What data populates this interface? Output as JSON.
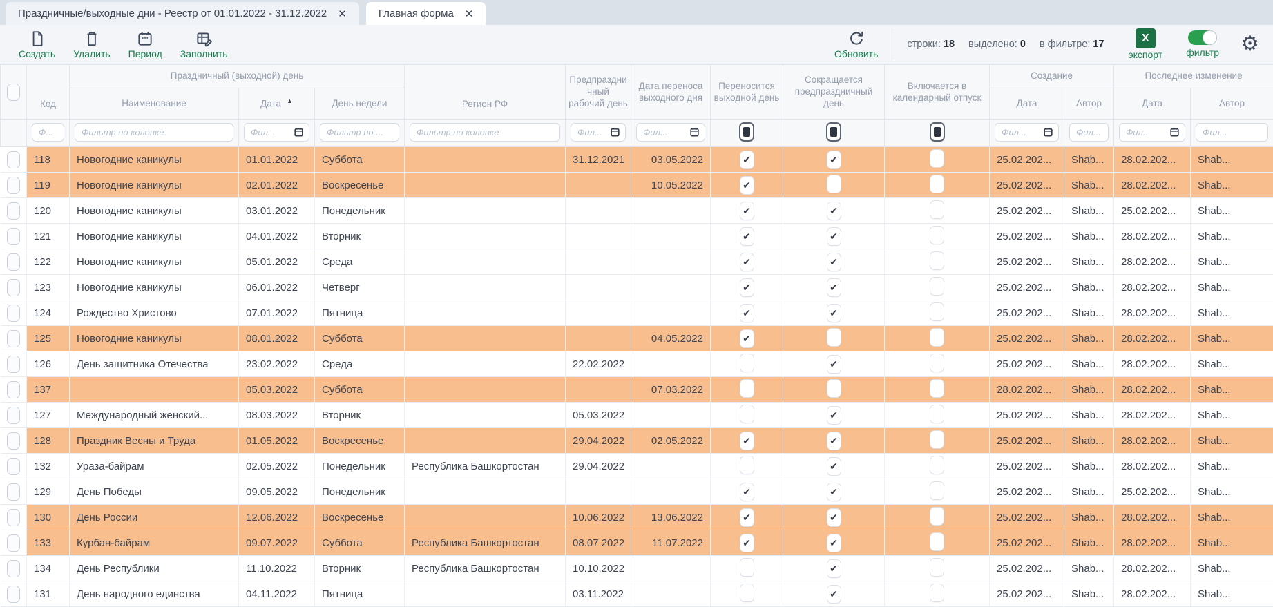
{
  "tabs": [
    {
      "label": "Праздничные/выходные дни - Реестр от 01.01.2022 - 31.12.2022"
    },
    {
      "label": "Главная форма"
    }
  ],
  "icons": {
    "close": "✕",
    "check": "✔",
    "sort_asc": "▲",
    "gear": "⚙",
    "export_letter": "X"
  },
  "colors": {
    "accent_green": "#17824e",
    "row_highlight": "#f9be8e",
    "excel_green": "#1e7145",
    "toggle_on": "#2aa04f"
  },
  "toolbar": {
    "create": "Создать",
    "delete": "Удалить",
    "period": "Период",
    "fill": "Заполнить",
    "refresh": "Обновить",
    "status": {
      "rows_label": "строки:",
      "rows": "18",
      "selected_label": "выделено:",
      "selected": "0",
      "filtered_label": "в фильтре:",
      "filtered": "17"
    },
    "export": "экспорт",
    "filter": "фильтр"
  },
  "table": {
    "groups": {
      "holiday": "Праздничный (выходной) день",
      "creation": "Создание",
      "last_change": "Последнее изменение"
    },
    "columns": {
      "code": "Код",
      "name": "Наименование",
      "date": "Дата",
      "weekday": "День недели",
      "region": "Регион РФ",
      "preholiday": "Предпраздничный рабочий день",
      "transfer": "Дата переноса выходного дня",
      "transferred": "Переносится выходной день",
      "shortened": "Сокращается предпраздничный день",
      "vacation": "Включается в календарный отпуск",
      "created_date": "Дата",
      "created_by": "Автор",
      "modified_date": "Дата",
      "modified_by": "Автор"
    },
    "sort": {
      "column": "date",
      "direction": "asc"
    },
    "filters": {
      "code": "Ф...",
      "name": "Фильтр по колонке",
      "date": "Фил...",
      "weekday": "Фильтр по ...",
      "region": "Фильтр по колонке",
      "preholiday": "Фил...",
      "transfer": "Фил...",
      "created_date": "Фил...",
      "created_by": "Фил...",
      "modified_date": "Фил...",
      "modified_by": "Фил..."
    },
    "rows": [
      {
        "code": "118",
        "name": "Новогодние каникулы",
        "date": "01.01.2022",
        "weekday": "Суббота",
        "region": "",
        "preholiday": "31.12.2021",
        "transfer": "03.05.2022",
        "transferred": true,
        "shortened": true,
        "vacation": false,
        "created_date": "25.02.202...",
        "created_by": "Shab...",
        "modified_date": "28.02.202...",
        "modified_by": "Shab...",
        "highlighted": true
      },
      {
        "code": "119",
        "name": "Новогодние каникулы",
        "date": "02.01.2022",
        "weekday": "Воскресенье",
        "region": "",
        "preholiday": "",
        "transfer": "10.05.2022",
        "transferred": true,
        "shortened": false,
        "vacation": false,
        "created_date": "25.02.202...",
        "created_by": "Shab...",
        "modified_date": "28.02.202...",
        "modified_by": "Shab...",
        "highlighted": true
      },
      {
        "code": "120",
        "name": "Новогодние каникулы",
        "date": "03.01.2022",
        "weekday": "Понедельник",
        "region": "",
        "preholiday": "",
        "transfer": "",
        "transferred": true,
        "shortened": true,
        "vacation": false,
        "created_date": "25.02.202...",
        "created_by": "Shab...",
        "modified_date": "25.02.202...",
        "modified_by": "Shab...",
        "highlighted": false
      },
      {
        "code": "121",
        "name": "Новогодние каникулы",
        "date": "04.01.2022",
        "weekday": "Вторник",
        "region": "",
        "preholiday": "",
        "transfer": "",
        "transferred": true,
        "shortened": true,
        "vacation": false,
        "created_date": "25.02.202...",
        "created_by": "Shab...",
        "modified_date": "28.02.202...",
        "modified_by": "Shab...",
        "highlighted": false
      },
      {
        "code": "122",
        "name": "Новогодние каникулы",
        "date": "05.01.2022",
        "weekday": "Среда",
        "region": "",
        "preholiday": "",
        "transfer": "",
        "transferred": true,
        "shortened": true,
        "vacation": false,
        "created_date": "25.02.202...",
        "created_by": "Shab...",
        "modified_date": "28.02.202...",
        "modified_by": "Shab...",
        "highlighted": false
      },
      {
        "code": "123",
        "name": "Новогодние каникулы",
        "date": "06.01.2022",
        "weekday": "Четверг",
        "region": "",
        "preholiday": "",
        "transfer": "",
        "transferred": true,
        "shortened": true,
        "vacation": false,
        "created_date": "25.02.202...",
        "created_by": "Shab...",
        "modified_date": "28.02.202...",
        "modified_by": "Shab...",
        "highlighted": false
      },
      {
        "code": "124",
        "name": "Рождество Христово",
        "date": "07.01.2022",
        "weekday": "Пятница",
        "region": "",
        "preholiday": "",
        "transfer": "",
        "transferred": true,
        "shortened": true,
        "vacation": false,
        "created_date": "25.02.202...",
        "created_by": "Shab...",
        "modified_date": "28.02.202...",
        "modified_by": "Shab...",
        "highlighted": false
      },
      {
        "code": "125",
        "name": "Новогодние каникулы",
        "date": "08.01.2022",
        "weekday": "Суббота",
        "region": "",
        "preholiday": "",
        "transfer": "04.05.2022",
        "transferred": true,
        "shortened": false,
        "vacation": false,
        "created_date": "25.02.202...",
        "created_by": "Shab...",
        "modified_date": "28.02.202...",
        "modified_by": "Shab...",
        "highlighted": true
      },
      {
        "code": "126",
        "name": "День защитника Отечества",
        "date": "23.02.2022",
        "weekday": "Среда",
        "region": "",
        "preholiday": "22.02.2022",
        "transfer": "",
        "transferred": false,
        "shortened": true,
        "vacation": false,
        "created_date": "25.02.202...",
        "created_by": "Shab...",
        "modified_date": "28.02.202...",
        "modified_by": "Shab...",
        "highlighted": false
      },
      {
        "code": "137",
        "name": "",
        "date": "05.03.2022",
        "weekday": "Суббота",
        "region": "",
        "preholiday": "",
        "transfer": "07.03.2022",
        "transferred": false,
        "shortened": false,
        "vacation": false,
        "created_date": "28.02.202...",
        "created_by": "Shab...",
        "modified_date": "28.02.202...",
        "modified_by": "Shab...",
        "highlighted": true
      },
      {
        "code": "127",
        "name": "Международный женский...",
        "date": "08.03.2022",
        "weekday": "Вторник",
        "region": "",
        "preholiday": "05.03.2022",
        "transfer": "",
        "transferred": false,
        "shortened": true,
        "vacation": false,
        "created_date": "25.02.202...",
        "created_by": "Shab...",
        "modified_date": "28.02.202...",
        "modified_by": "Shab...",
        "highlighted": false
      },
      {
        "code": "128",
        "name": "Праздник Весны и Труда",
        "date": "01.05.2022",
        "weekday": "Воскресенье",
        "region": "",
        "preholiday": "29.04.2022",
        "transfer": "02.05.2022",
        "transferred": true,
        "shortened": true,
        "vacation": false,
        "created_date": "25.02.202...",
        "created_by": "Shab...",
        "modified_date": "28.02.202...",
        "modified_by": "Shab...",
        "highlighted": true
      },
      {
        "code": "132",
        "name": "Ураза-байрам",
        "date": "02.05.2022",
        "weekday": "Понедельник",
        "region": "Республика Башкортостан",
        "preholiday": "29.04.2022",
        "transfer": "",
        "transferred": false,
        "shortened": true,
        "vacation": false,
        "created_date": "25.02.202...",
        "created_by": "Shab...",
        "modified_date": "28.02.202...",
        "modified_by": "Shab...",
        "highlighted": false
      },
      {
        "code": "129",
        "name": "День Победы",
        "date": "09.05.2022",
        "weekday": "Понедельник",
        "region": "",
        "preholiday": "",
        "transfer": "",
        "transferred": true,
        "shortened": true,
        "vacation": false,
        "created_date": "25.02.202...",
        "created_by": "Shab...",
        "modified_date": "25.02.202...",
        "modified_by": "Shab...",
        "highlighted": false
      },
      {
        "code": "130",
        "name": "День России",
        "date": "12.06.2022",
        "weekday": "Воскресенье",
        "region": "",
        "preholiday": "10.06.2022",
        "transfer": "13.06.2022",
        "transferred": true,
        "shortened": true,
        "vacation": false,
        "created_date": "25.02.202...",
        "created_by": "Shab...",
        "modified_date": "28.02.202...",
        "modified_by": "Shab...",
        "highlighted": true
      },
      {
        "code": "133",
        "name": "Курбан-байрам",
        "date": "09.07.2022",
        "weekday": "Суббота",
        "region": "Республика Башкортостан",
        "preholiday": "08.07.2022",
        "transfer": "11.07.2022",
        "transferred": true,
        "shortened": true,
        "vacation": false,
        "created_date": "25.02.202...",
        "created_by": "Shab...",
        "modified_date": "28.02.202...",
        "modified_by": "Shab...",
        "highlighted": true
      },
      {
        "code": "134",
        "name": "День Республики",
        "date": "11.10.2022",
        "weekday": "Вторник",
        "region": "Республика Башкортостан",
        "preholiday": "10.10.2022",
        "transfer": "",
        "transferred": false,
        "shortened": true,
        "vacation": false,
        "created_date": "25.02.202...",
        "created_by": "Shab...",
        "modified_date": "28.02.202...",
        "modified_by": "Shab...",
        "highlighted": false
      },
      {
        "code": "131",
        "name": "День народного единства",
        "date": "04.11.2022",
        "weekday": "Пятница",
        "region": "",
        "preholiday": "03.11.2022",
        "transfer": "",
        "transferred": false,
        "shortened": true,
        "vacation": false,
        "created_date": "25.02.202...",
        "created_by": "Shab...",
        "modified_date": "28.02.202...",
        "modified_by": "Shab...",
        "highlighted": false
      }
    ]
  }
}
